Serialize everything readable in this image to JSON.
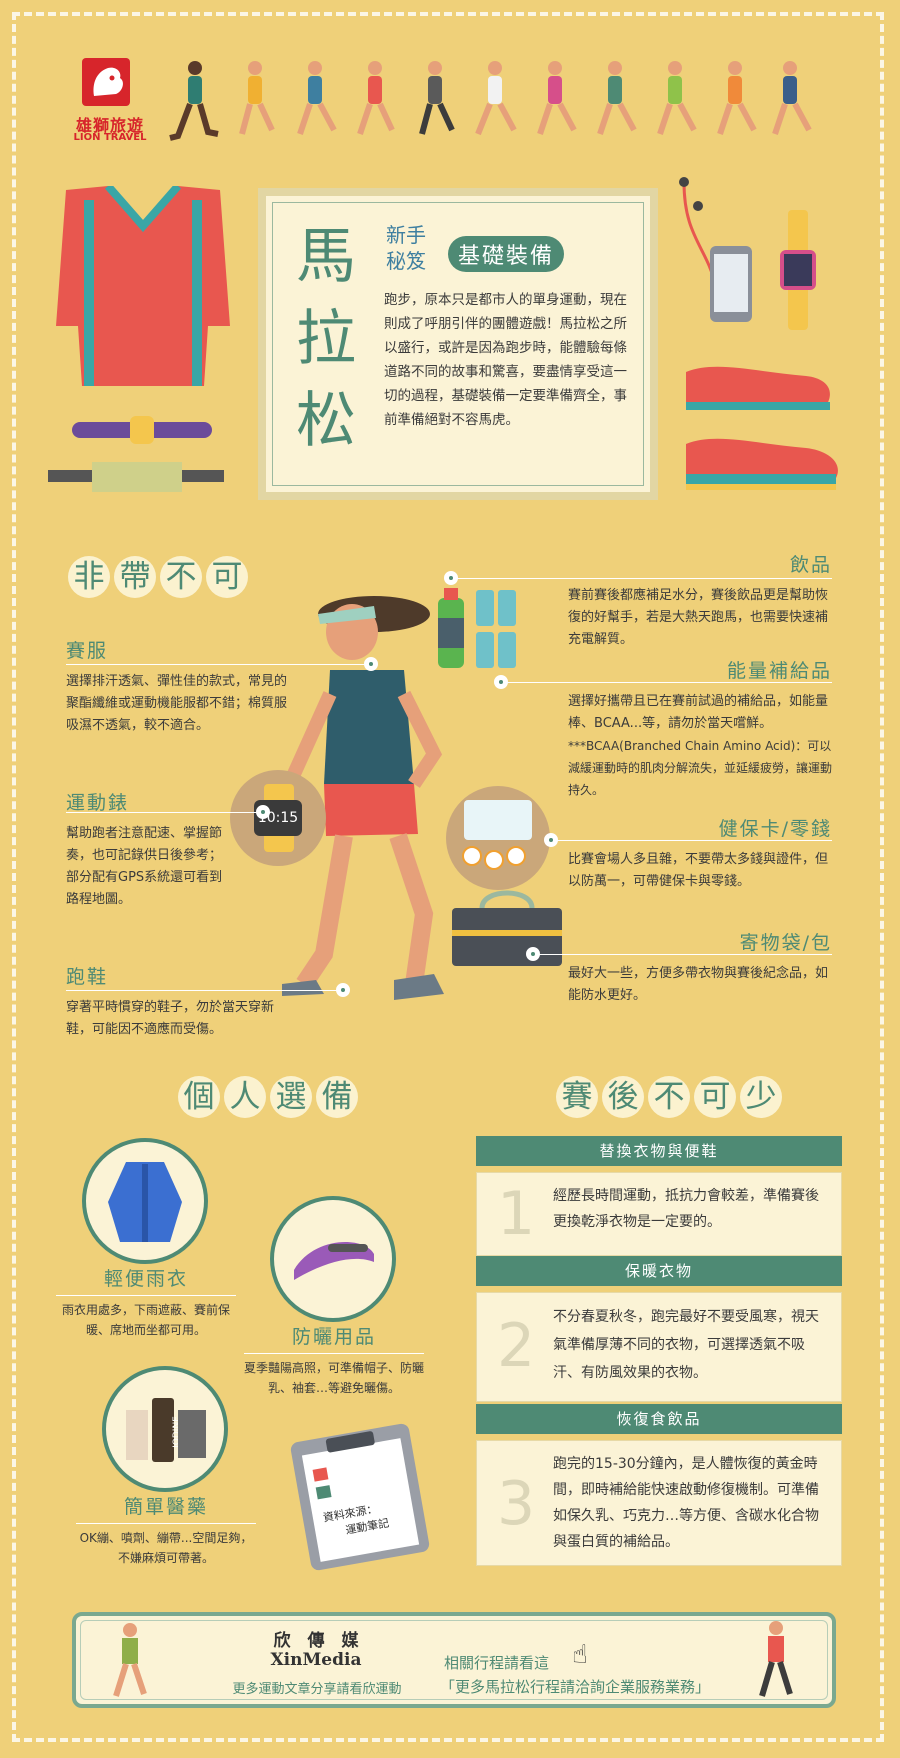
{
  "brand": {
    "name_zh": "雄獅旅遊",
    "name_en": "LION TRAVEL"
  },
  "hero": {
    "title": [
      "馬",
      "拉",
      "松"
    ],
    "subtitle_small": [
      "新手",
      "秘笈"
    ],
    "subtitle_tag": "基礎裝備",
    "intro": "跑步，原本只是都市人的單身運動，現在則成了呼朋引伴的團體遊戲！馬拉松之所以盛行，或許是因為跑步時，能體驗每條道路不同的故事和驚喜，要盡情享受這一切的過程，基礎裝備一定要準備齊全，事前準備絕對不容馬虎。"
  },
  "must": {
    "heading": [
      "非",
      "帶",
      "不",
      "可"
    ],
    "items": [
      {
        "title": "賽服",
        "text": "選擇排汗透氣、彈性佳的款式，常見的聚酯纖維或運動機能服都不錯；棉質服吸濕不透氣，較不適合。"
      },
      {
        "title": "運動錶",
        "text": "幫助跑者注意配速、掌握節奏，也可記錄供日後參考；部分配有GPS系統還可看到路程地圖。"
      },
      {
        "title": "跑鞋",
        "text": "穿著平時慣穿的鞋子，勿於當天穿新鞋，可能因不適應而受傷。"
      },
      {
        "title": "飲品",
        "text": "賽前賽後都應補足水分，賽後飲品更是幫助恢復的好幫手，若是大熱天跑馬，也需要快速補充電解質。"
      },
      {
        "title": "能量補給品",
        "text": "選擇好攜帶且已在賽前試過的補給品，如能量棒、BCAA...等，請勿於當天嚐鮮。",
        "note": "***BCAA(Branched Chain Amino Acid)：可以減緩運動時的肌肉分解流失，並延緩疲勞，讓運動持久。"
      },
      {
        "title": "健保卡/零錢",
        "text": "比賽會場人多且雜，不要帶太多錢與證件，但以防萬一，可帶健保卡與零錢。"
      },
      {
        "title": "寄物袋/包",
        "text": "最好大一些，方便多帶衣物與賽後紀念品，如能防水更好。"
      }
    ],
    "bottle_label": "POWER",
    "watch_time": "10:15"
  },
  "personal": {
    "heading": [
      "個",
      "人",
      "選",
      "備"
    ],
    "items": [
      {
        "title": "輕便雨衣",
        "text": "雨衣用處多，下雨遮蔽、賽前保暖、席地而坐都可用。"
      },
      {
        "title": "防曬用品",
        "text": "夏季豔陽高照，可準備帽子、防曬乳、袖套…等避免曬傷。"
      },
      {
        "title": "簡單醫藥",
        "text": "OK繃、噴劑、繃帶...空間足夠，不嫌麻煩可帶著。"
      }
    ],
    "iodine_label": "IODINE",
    "clipboard_text": [
      "資料來源：",
      "運動筆記"
    ]
  },
  "after": {
    "heading": [
      "賽",
      "後",
      "不",
      "可",
      "少"
    ],
    "items": [
      {
        "num": "1",
        "title": "替換衣物與便鞋",
        "text": "經歷長時間運動，抵抗力會較差，準備賽後更換乾淨衣物是一定要的。"
      },
      {
        "num": "2",
        "title": "保暖衣物",
        "text": "不分春夏秋冬，跑完最好不要受風寒，視天氣準備厚薄不同的衣物，可選擇透氣不吸汗、有防風效果的衣物。"
      },
      {
        "num": "3",
        "title": "恢復食飲品",
        "text": "跑完的15-30分鐘內，是人體恢復的黃金時間，即時補給能快速啟動修復機制。可準備如保久乳、巧克力…等方便、含碳水化合物與蛋白質的補給品。"
      }
    ]
  },
  "footer": {
    "media_zh": "欣　傳　媒",
    "media_en": "XinMedia",
    "media_note": "更多運動文章分享請看欣運動",
    "link_line1": "相關行程請看這",
    "link_line2": "「更多馬拉松行程請洽詢企業服務業務」"
  },
  "colors": {
    "background": "#efd079",
    "accent": "#4e8a74",
    "panel": "#fbf3d6",
    "red": "#e8574f"
  }
}
